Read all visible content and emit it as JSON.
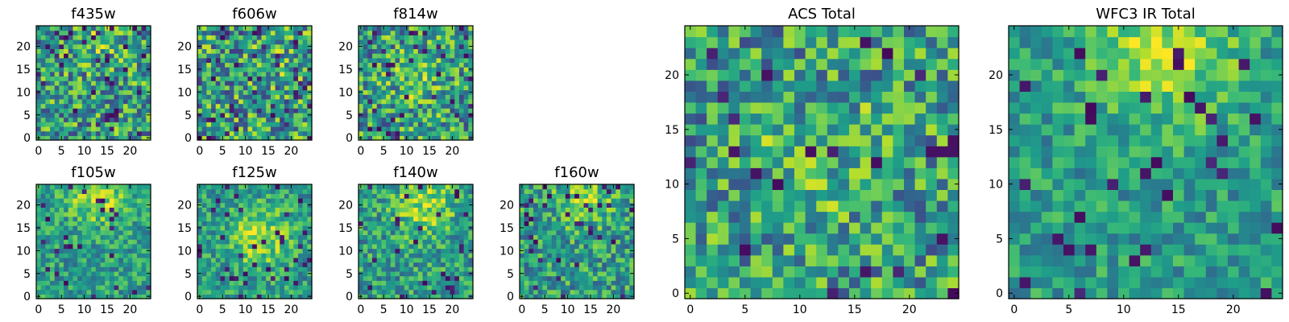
{
  "chart_data": [
    {
      "type": "heatmap",
      "title": "f435w",
      "xticks": [
        "0",
        "5",
        "10",
        "15",
        "20"
      ],
      "yticks": [
        "0",
        "5",
        "10",
        "15",
        "20"
      ],
      "grid_size": 25,
      "xlim": [
        0,
        24
      ],
      "ylim": [
        0,
        24
      ],
      "palette": "viridis"
    },
    {
      "type": "heatmap",
      "title": "f606w",
      "xticks": [
        "0",
        "5",
        "10",
        "15",
        "20"
      ],
      "yticks": [
        "0",
        "5",
        "10",
        "15",
        "20"
      ],
      "grid_size": 25,
      "xlim": [
        0,
        24
      ],
      "ylim": [
        0,
        24
      ],
      "palette": "viridis"
    },
    {
      "type": "heatmap",
      "title": "f814w",
      "xticks": [
        "0",
        "5",
        "10",
        "15",
        "20"
      ],
      "yticks": [
        "0",
        "5",
        "10",
        "15",
        "20"
      ],
      "grid_size": 25,
      "xlim": [
        0,
        24
      ],
      "ylim": [
        0,
        24
      ],
      "palette": "viridis"
    },
    {
      "type": "heatmap",
      "title": "f105w",
      "xticks": [
        "0",
        "5",
        "10",
        "15",
        "20"
      ],
      "yticks": [
        "0",
        "5",
        "10",
        "15",
        "20"
      ],
      "grid_size": 25,
      "xlim": [
        0,
        24
      ],
      "ylim": [
        0,
        24
      ],
      "palette": "viridis"
    },
    {
      "type": "heatmap",
      "title": "f125w",
      "xticks": [
        "0",
        "5",
        "10",
        "15",
        "20"
      ],
      "yticks": [
        "0",
        "5",
        "10",
        "15",
        "20"
      ],
      "grid_size": 25,
      "xlim": [
        0,
        24
      ],
      "ylim": [
        0,
        24
      ],
      "palette": "viridis"
    },
    {
      "type": "heatmap",
      "title": "f140w",
      "xticks": [
        "0",
        "5",
        "10",
        "15",
        "20"
      ],
      "yticks": [
        "0",
        "5",
        "10",
        "15",
        "20"
      ],
      "grid_size": 25,
      "xlim": [
        0,
        24
      ],
      "ylim": [
        0,
        24
      ],
      "palette": "viridis"
    },
    {
      "type": "heatmap",
      "title": "f160w",
      "xticks": [
        "0",
        "5",
        "10",
        "15",
        "20"
      ],
      "yticks": [
        "0",
        "5",
        "10",
        "15",
        "20"
      ],
      "grid_size": 25,
      "xlim": [
        0,
        24
      ],
      "ylim": [
        0,
        24
      ],
      "palette": "viridis"
    },
    {
      "type": "heatmap",
      "title": "ACS Total",
      "xticks": [
        "0",
        "5",
        "10",
        "15",
        "20"
      ],
      "yticks": [
        "0",
        "5",
        "10",
        "15",
        "20"
      ],
      "grid_size": 25,
      "xlim": [
        0,
        24
      ],
      "ylim": [
        0,
        24
      ],
      "palette": "viridis"
    },
    {
      "type": "heatmap",
      "title": "WFC3 IR Total",
      "xticks": [
        "0",
        "5",
        "10",
        "15",
        "20"
      ],
      "yticks": [
        "0",
        "5",
        "10",
        "15",
        "20"
      ],
      "grid_size": 25,
      "xlim": [
        0,
        24
      ],
      "ylim": [
        0,
        24
      ],
      "palette": "viridis"
    }
  ]
}
